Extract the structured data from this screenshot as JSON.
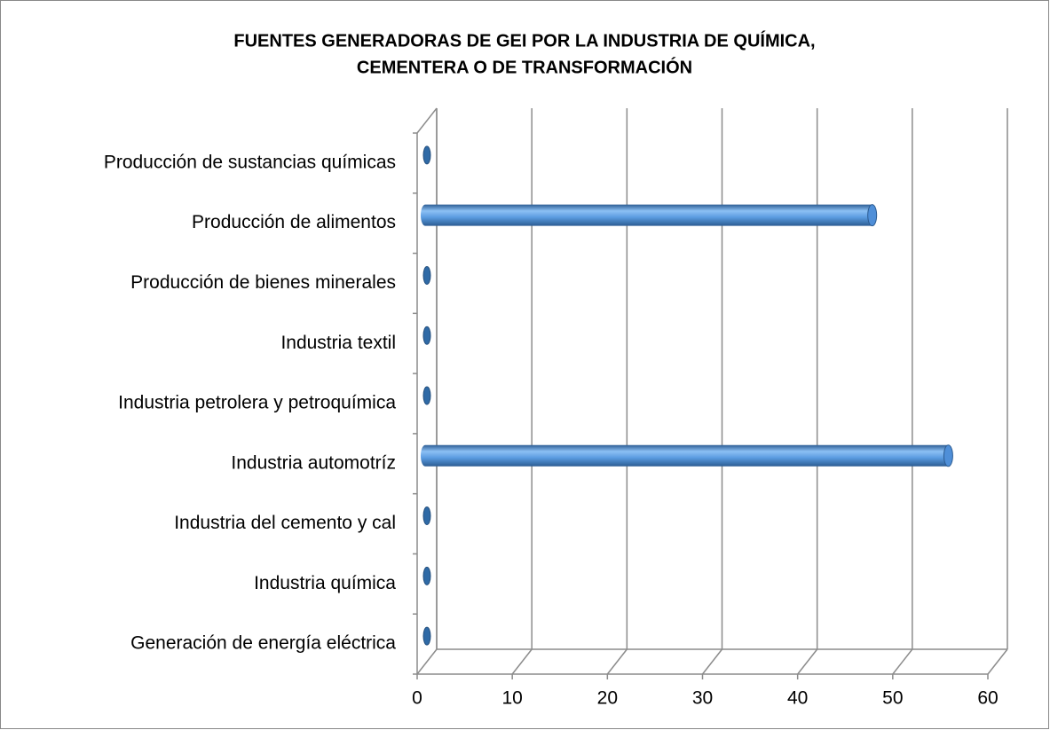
{
  "chart_data": {
    "type": "bar3d_horizontal",
    "title": [
      "FUENTES GENERADORAS DE GEI POR LA INDUSTRIA DE QUÍMICA,",
      "CEMENTERA O DE TRANSFORMACIÓN"
    ],
    "categories": [
      "Producción de sustancias químicas",
      "Producción de alimentos",
      "Producción de bienes minerales",
      "Industria textil",
      "Industria petrolera y petroquímica",
      "Industria automotríz",
      "Industria del cemento y cal",
      "Industria química",
      "Generación de energía eléctrica"
    ],
    "values": [
      0,
      47,
      0,
      0,
      0,
      55,
      0,
      0,
      0
    ],
    "color": "#4f8fd8",
    "xlim": [
      0,
      60
    ],
    "xticks": [
      0,
      10,
      20,
      30,
      40,
      50,
      60
    ],
    "grid": true
  }
}
